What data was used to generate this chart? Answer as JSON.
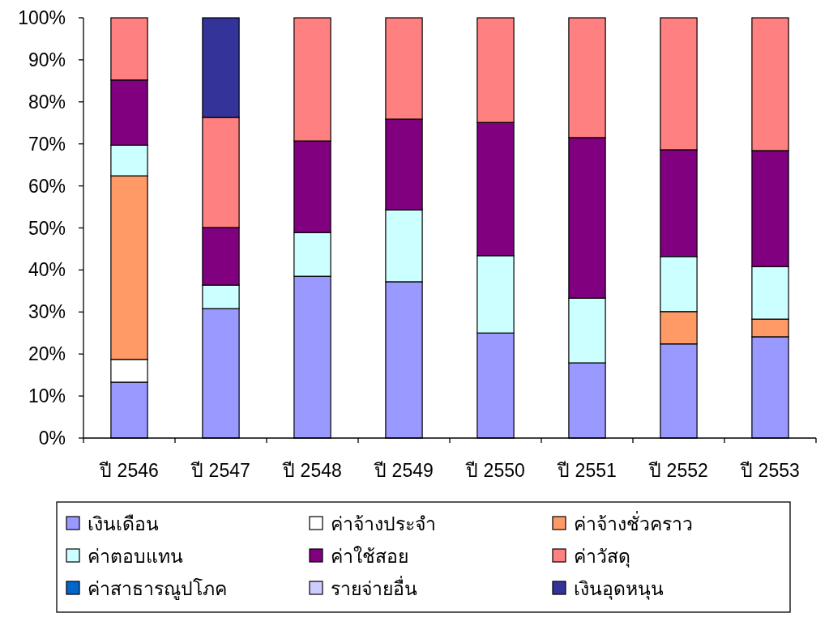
{
  "chart_data": {
    "type": "bar",
    "stacked": true,
    "categories": [
      "ปี 2546",
      "ปี 2547",
      "ปี 2548",
      "ปี 2549",
      "ปี 2550",
      "ปี 2551",
      "ปี 2552",
      "ปี 2553"
    ],
    "ylim": [
      0,
      100
    ],
    "yticks": [
      {
        "value": 0,
        "label": "0%"
      },
      {
        "value": 10,
        "label": "10%"
      },
      {
        "value": 20,
        "label": "20%"
      },
      {
        "value": 30,
        "label": "30%"
      },
      {
        "value": 40,
        "label": "40%"
      },
      {
        "value": 50,
        "label": "50%"
      },
      {
        "value": 60,
        "label": "60%"
      },
      {
        "value": 70,
        "label": "70%"
      },
      {
        "value": 80,
        "label": "80%"
      },
      {
        "value": 90,
        "label": "90%"
      },
      {
        "value": 100,
        "label": "100%"
      }
    ],
    "legend": "bottom",
    "grid": false,
    "series": [
      {
        "name": "เงินเดือน",
        "color": "#9999ff",
        "values": [
          13.3,
          30.8,
          38.5,
          37.2,
          25.0,
          17.9,
          22.4,
          24.1
        ]
      },
      {
        "name": "ค่าจ้างประจำ",
        "color": "#ffffff",
        "values": [
          5.4,
          null,
          null,
          null,
          null,
          null,
          null,
          null
        ]
      },
      {
        "name": "ค่าจ้างชั่วคราว",
        "color": "#ff9966",
        "values": [
          43.7,
          null,
          null,
          null,
          null,
          null,
          7.7,
          4.2
        ]
      },
      {
        "name": "ค่าตอบแทน",
        "color": "#ccffff",
        "values": [
          7.3,
          5.6,
          10.4,
          17.1,
          18.4,
          15.4,
          13.1,
          12.5
        ]
      },
      {
        "name": "ค่าใช้สอย",
        "color": "#800080",
        "values": [
          15.5,
          13.7,
          21.8,
          21.6,
          31.7,
          38.2,
          25.4,
          27.6
        ]
      },
      {
        "name": "ค่าวัสดุ",
        "color": "#ff8080",
        "values": [
          14.8,
          26.2,
          29.3,
          24.1,
          24.9,
          28.5,
          31.4,
          31.6
        ]
      },
      {
        "name": "ค่าสาธารณูปโภค",
        "color": "#0066cc",
        "values": [
          null,
          null,
          null,
          null,
          null,
          null,
          null,
          null
        ]
      },
      {
        "name": "รายจ่ายอื่น",
        "color": "#ccccff",
        "values": [
          null,
          null,
          null,
          null,
          null,
          null,
          null,
          null
        ]
      },
      {
        "name": "เงินอุดหนุน",
        "color": "#333399",
        "values": [
          null,
          23.7,
          null,
          null,
          null,
          null,
          null,
          null
        ]
      }
    ]
  }
}
